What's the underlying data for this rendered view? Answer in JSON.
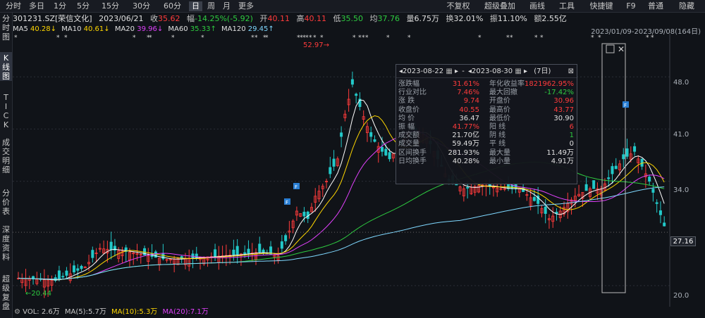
{
  "toolbar": {
    "periods": [
      "分时",
      "多日",
      "1分",
      "5分",
      "15分",
      "30分",
      "60分",
      "日",
      "周",
      "月",
      "更多"
    ],
    "active_period": "日",
    "right_items": [
      "不复权",
      "超级叠加",
      "画线",
      "工具",
      "快捷键",
      "F9",
      "普通",
      "隐藏"
    ]
  },
  "info": {
    "code": "301231.SZ[荣信文化]",
    "date": "2023/06/21",
    "close_label": "收",
    "close": "35.62",
    "change_label": "幅",
    "change": "-14.25%(-5.92)",
    "open_label": "开",
    "open": "40.11",
    "high_label": "高",
    "high": "40.11",
    "low_label": "低",
    "low": "35.50",
    "avg_label": "均",
    "avg": "37.76",
    "vol_label": "量",
    "vol": "6.75万",
    "turnover_label": "换",
    "turnover": "32.01%",
    "amp_label": "振",
    "amp": "11.10%",
    "amount_label": "额",
    "amount": "2.55亿"
  },
  "ma": {
    "ma5_label": "MA5",
    "ma5": "40.28↓",
    "ma10_label": "MA10",
    "ma10": "40.61↓",
    "ma20_label": "MA20",
    "ma20": "39.96↓",
    "ma60_label": "MA60",
    "ma60": "35.33↑",
    "ma120_label": "MA120",
    "ma120": "29.45↑",
    "date_range": "2023/01/09-2023/09/08(164日)"
  },
  "sidebar": [
    {
      "label": [
        "分",
        "时",
        "图"
      ]
    },
    {
      "label": [
        "K",
        "线",
        "图"
      ]
    },
    {
      "label": [
        "T",
        "I",
        "C",
        "K"
      ]
    },
    {
      "label": [
        "成",
        "交",
        "明",
        "细"
      ]
    },
    {
      "label": [
        "分",
        "价",
        "表"
      ]
    },
    {
      "label": [
        "深",
        "度",
        "资",
        "料"
      ]
    },
    {
      "label": [
        "超",
        "级",
        "复",
        "盘"
      ]
    }
  ],
  "axis": {
    "labels": [
      "48.0",
      "41.0",
      "34.0",
      "27.16",
      "20.0"
    ],
    "current_price": "27.16",
    "high_marker": "52.97",
    "low_marker": "20.44"
  },
  "popup": {
    "start_date": "2023-08-22",
    "end_date": "2023-08-30",
    "days": "(7日)",
    "rows_left": [
      [
        "涨跌幅",
        "31.61%"
      ],
      [
        "行业对比",
        "7.46%"
      ],
      [
        "涨 跌",
        "9.74"
      ],
      [
        "收盘价",
        "40.55"
      ],
      [
        "均 价",
        "36.47"
      ],
      [
        "振 幅",
        "41.77%"
      ],
      [
        "成交额",
        "21.70亿"
      ],
      [
        "成交量",
        "59.49万"
      ],
      [
        "区间换手",
        "281.93%"
      ],
      [
        "日均换手",
        "40.28%"
      ]
    ],
    "rows_right": [
      [
        "年化收益率",
        "1821962.95%"
      ],
      [
        "最大回撤",
        "-17.42%"
      ],
      [
        "开盘价",
        "30.96"
      ],
      [
        "最高价",
        "43.77"
      ],
      [
        "最低价",
        "30.90"
      ],
      [
        "阳 线",
        "6"
      ],
      [
        "阴 线",
        "1"
      ],
      [
        "平 线",
        "0"
      ],
      [
        "最大量",
        "11.49万"
      ],
      [
        "最小量",
        "4.91万"
      ]
    ]
  },
  "volume": {
    "vol_label": "VOL:",
    "vol": "2.6万",
    "ma5_label": "MA(5):",
    "ma5": "5.7万",
    "ma10_label": "MA(10):",
    "ma10": "5.3万",
    "ma20_label": "MA(20):",
    "ma20": "7.1万"
  },
  "colors": {
    "up": "#ff3b3b",
    "down": "#22c9c9",
    "ma5": "#ffffff",
    "ma10": "#ffd700",
    "ma20": "#e040fb",
    "ma60": "#2ecc40",
    "ma120": "#7fd8ff"
  }
}
